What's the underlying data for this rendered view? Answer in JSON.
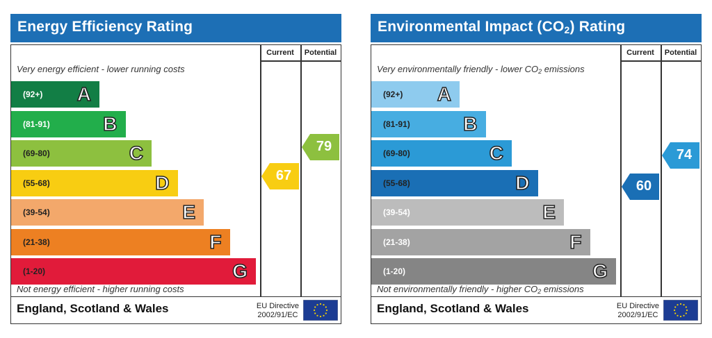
{
  "charts": [
    {
      "id": "energy",
      "title": "Energy Efficiency Rating",
      "title_sub": "",
      "title_tail": "",
      "col_current": "Current",
      "col_potential": "Potential",
      "top_caption": "Very energy efficient - lower running costs",
      "top_caption_sub": "",
      "top_caption_tail": "",
      "bottom_caption": "Not energy efficient - higher running costs",
      "bottom_caption_sub": "",
      "bottom_caption_tail": "",
      "region": "England, Scotland & Wales",
      "directive_line1": "EU Directive",
      "directive_line2": "2002/91/EC",
      "bands": [
        {
          "range": "(92+)",
          "letter": "A",
          "color": "#127e45",
          "text_color": "#ffffff"
        },
        {
          "range": "(81-91)",
          "letter": "B",
          "color": "#22ae4b",
          "text_color": "#ffffff"
        },
        {
          "range": "(69-80)",
          "letter": "C",
          "color": "#8dc03f",
          "text_color": "#222222"
        },
        {
          "range": "(55-68)",
          "letter": "D",
          "color": "#f8cd12",
          "text_color": "#222222"
        },
        {
          "range": "(39-54)",
          "letter": "E",
          "color": "#f3a86b",
          "text_color": "#222222"
        },
        {
          "range": "(21-38)",
          "letter": "F",
          "color": "#ed8022",
          "text_color": "#222222"
        },
        {
          "range": "(1-20)",
          "letter": "G",
          "color": "#e11b3a",
          "text_color": "#222222"
        }
      ],
      "current": {
        "value": 67,
        "label": "67",
        "color": "#f8cd12"
      },
      "potential": {
        "value": 79,
        "label": "79",
        "color": "#8dc03f"
      }
    },
    {
      "id": "env",
      "title": "Environmental Impact (CO",
      "title_sub": "2",
      "title_tail": ") Rating",
      "col_current": "Current",
      "col_potential": "Potential",
      "top_caption": "Very environmentally friendly - lower CO",
      "top_caption_sub": "2",
      "top_caption_tail": " emissions",
      "bottom_caption": "Not environmentally friendly - higher CO",
      "bottom_caption_sub": "2",
      "bottom_caption_tail": " emissions",
      "region": "England, Scotland & Wales",
      "directive_line1": "EU Directive",
      "directive_line2": "2002/91/EC",
      "bands": [
        {
          "range": "(92+)",
          "letter": "A",
          "color": "#8ecbee",
          "text_color": "#222222"
        },
        {
          "range": "(81-91)",
          "letter": "B",
          "color": "#47ade1",
          "text_color": "#222222"
        },
        {
          "range": "(69-80)",
          "letter": "C",
          "color": "#2b9ad6",
          "text_color": "#222222"
        },
        {
          "range": "(55-68)",
          "letter": "D",
          "color": "#1a6fb5",
          "text_color": "#222222"
        },
        {
          "range": "(39-54)",
          "letter": "E",
          "color": "#bcbcbc",
          "text_color": "#ffffff"
        },
        {
          "range": "(21-38)",
          "letter": "F",
          "color": "#a3a3a3",
          "text_color": "#ffffff"
        },
        {
          "range": "(1-20)",
          "letter": "G",
          "color": "#858585",
          "text_color": "#ffffff"
        }
      ],
      "current": {
        "value": 60,
        "label": "60",
        "color": "#1a6fb5"
      },
      "potential": {
        "value": 74,
        "label": "74",
        "color": "#2b9ad6"
      }
    }
  ],
  "flag_colors": {
    "field": "#1c3c93",
    "stars": "#f6d402"
  }
}
